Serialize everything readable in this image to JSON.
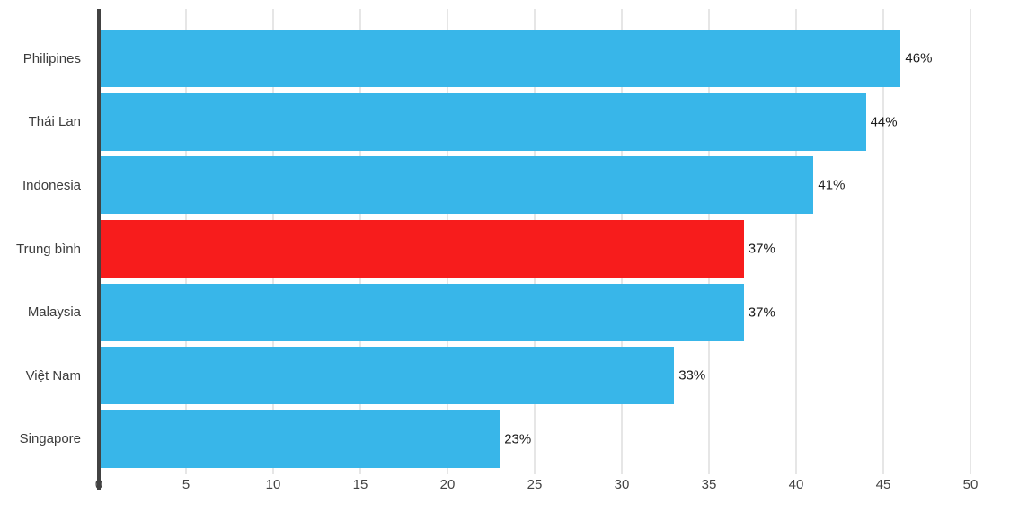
{
  "chart_data": {
    "type": "bar",
    "orientation": "horizontal",
    "title": "",
    "xlabel": "",
    "ylabel": "",
    "categories": [
      "Philipines",
      "Thái Lan",
      "Indonesia",
      "Trung bình",
      "Malaysia",
      "Việt Nam",
      "Singapore"
    ],
    "values": [
      46,
      44,
      41,
      37,
      37,
      33,
      23
    ],
    "value_labels": [
      "46%",
      "44%",
      "41%",
      "37%",
      "37%",
      "33%",
      "23%"
    ],
    "bar_colors": [
      "#38b6e9",
      "#38b6e9",
      "#38b6e9",
      "#f71c1c",
      "#38b6e9",
      "#38b6e9",
      "#38b6e9"
    ],
    "highlight_category": "Trung bình",
    "xlim": [
      0,
      50
    ],
    "x_ticks": [
      0,
      5,
      10,
      15,
      20,
      25,
      30,
      35,
      40,
      45,
      50
    ],
    "grid": true,
    "legend": "none",
    "colors": {
      "bar_default": "#38b6e9",
      "bar_highlight": "#f71c1c",
      "gridline": "#cccccc",
      "axis_line": "#424242",
      "label_text": "#3c3c3c",
      "background": "#ffffff"
    }
  }
}
